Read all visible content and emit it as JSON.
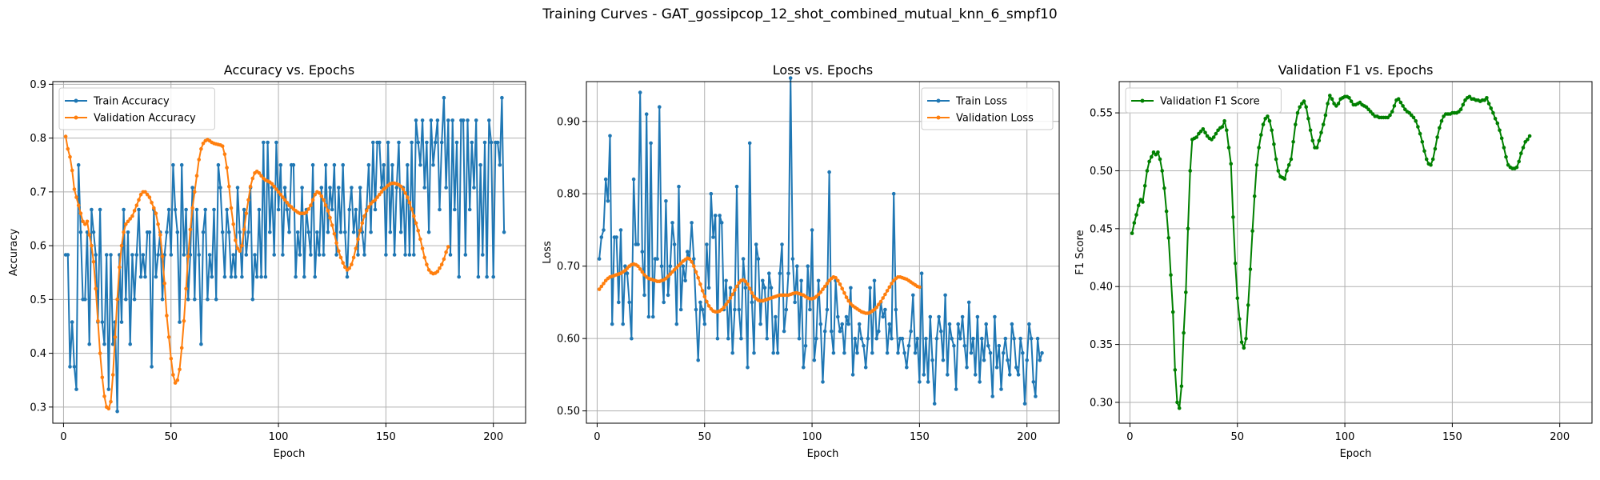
{
  "suptitle": "Training Curves - GAT_gossipcop_12_shot_combined_mutual_knn_6_smpf10",
  "colors": {
    "blue": "#1f77b4",
    "orange": "#ff7f0e",
    "green": "#008000",
    "grid": "#b0b0b0"
  },
  "chart_data": [
    {
      "type": "line",
      "title": "Accuracy vs. Epochs",
      "xlabel": "Epoch",
      "ylabel": "Accuracy",
      "xlim": [
        -5,
        215
      ],
      "ylim": [
        0.27,
        0.905
      ],
      "xticks": [
        0,
        50,
        100,
        150,
        200
      ],
      "yticks": [
        0.3,
        0.4,
        0.5,
        0.6,
        0.7,
        0.8,
        0.9
      ],
      "grid": true,
      "legend_position": "upper left",
      "series": [
        {
          "name": "Train Accuracy",
          "color": "#1f77b4",
          "x_start": 1,
          "values": [
            0.583,
            0.583,
            0.375,
            0.458,
            0.375,
            0.333,
            0.75,
            0.625,
            0.5,
            0.5,
            0.625,
            0.417,
            0.667,
            0.625,
            0.583,
            0.458,
            0.667,
            0.458,
            0.417,
            0.583,
            0.333,
            0.583,
            0.417,
            0.458,
            0.292,
            0.583,
            0.458,
            0.667,
            0.5,
            0.625,
            0.417,
            0.583,
            0.5,
            0.583,
            0.667,
            0.542,
            0.583,
            0.542,
            0.625,
            0.625,
            0.375,
            0.667,
            0.542,
            0.583,
            0.625,
            0.5,
            0.583,
            0.625,
            0.667,
            0.583,
            0.75,
            0.667,
            0.625,
            0.458,
            0.75,
            0.583,
            0.667,
            0.5,
            0.583,
            0.708,
            0.5,
            0.667,
            0.583,
            0.417,
            0.625,
            0.667,
            0.5,
            0.583,
            0.542,
            0.667,
            0.5,
            0.75,
            0.708,
            0.625,
            0.542,
            0.667,
            0.625,
            0.542,
            0.583,
            0.542,
            0.708,
            0.625,
            0.542,
            0.667,
            0.583,
            0.625,
            0.708,
            0.5,
            0.583,
            0.542,
            0.667,
            0.542,
            0.792,
            0.542,
            0.792,
            0.625,
            0.708,
            0.583,
            0.792,
            0.667,
            0.75,
            0.583,
            0.708,
            0.667,
            0.625,
            0.75,
            0.75,
            0.542,
            0.625,
            0.583,
            0.708,
            0.542,
            0.667,
            0.625,
            0.583,
            0.75,
            0.542,
            0.625,
            0.583,
            0.708,
            0.583,
            0.75,
            0.625,
            0.708,
            0.667,
            0.75,
            0.583,
            0.708,
            0.625,
            0.75,
            0.625,
            0.542,
            0.667,
            0.708,
            0.625,
            0.667,
            0.583,
            0.708,
            0.625,
            0.583,
            0.667,
            0.75,
            0.625,
            0.792,
            0.667,
            0.792,
            0.792,
            0.708,
            0.75,
            0.583,
            0.792,
            0.625,
            0.75,
            0.583,
            0.708,
            0.792,
            0.625,
            0.708,
            0.583,
            0.75,
            0.583,
            0.792,
            0.583,
            0.833,
            0.792,
            0.75,
            0.833,
            0.708,
            0.792,
            0.625,
            0.833,
            0.75,
            0.792,
            0.833,
            0.667,
            0.792,
            0.875,
            0.708,
            0.833,
            0.583,
            0.833,
            0.667,
            0.792,
            0.542,
            0.833,
            0.833,
            0.583,
            0.833,
            0.667,
            0.792,
            0.708,
            0.833,
            0.542,
            0.75,
            0.583,
            0.792,
            0.542,
            0.833,
            0.792,
            0.542,
            0.792,
            0.792,
            0.75,
            0.875,
            0.625
          ]
        },
        {
          "name": "Validation Accuracy",
          "color": "#ff7f0e",
          "x_start": 1,
          "values": [
            0.803,
            0.78,
            0.765,
            0.74,
            0.705,
            0.69,
            0.675,
            0.66,
            0.645,
            0.64,
            0.645,
            0.62,
            0.6,
            0.57,
            0.52,
            0.46,
            0.4,
            0.355,
            0.32,
            0.3,
            0.297,
            0.31,
            0.36,
            0.43,
            0.5,
            0.56,
            0.6,
            0.625,
            0.64,
            0.645,
            0.65,
            0.655,
            0.665,
            0.675,
            0.685,
            0.695,
            0.7,
            0.7,
            0.695,
            0.69,
            0.68,
            0.67,
            0.66,
            0.64,
            0.62,
            0.58,
            0.53,
            0.47,
            0.43,
            0.39,
            0.36,
            0.345,
            0.35,
            0.37,
            0.41,
            0.46,
            0.52,
            0.58,
            0.63,
            0.67,
            0.7,
            0.73,
            0.76,
            0.78,
            0.79,
            0.795,
            0.797,
            0.795,
            0.792,
            0.79,
            0.789,
            0.788,
            0.787,
            0.785,
            0.77,
            0.745,
            0.71,
            0.67,
            0.64,
            0.61,
            0.595,
            0.59,
            0.6,
            0.63,
            0.66,
            0.685,
            0.71,
            0.725,
            0.735,
            0.738,
            0.735,
            0.73,
            0.725,
            0.722,
            0.72,
            0.718,
            0.715,
            0.71,
            0.705,
            0.7,
            0.695,
            0.69,
            0.685,
            0.68,
            0.675,
            0.672,
            0.668,
            0.665,
            0.662,
            0.66,
            0.66,
            0.66,
            0.662,
            0.668,
            0.675,
            0.685,
            0.695,
            0.7,
            0.698,
            0.692,
            0.685,
            0.675,
            0.665,
            0.652,
            0.638,
            0.622,
            0.605,
            0.59,
            0.578,
            0.568,
            0.56,
            0.555,
            0.558,
            0.565,
            0.578,
            0.595,
            0.612,
            0.628,
            0.642,
            0.655,
            0.665,
            0.672,
            0.678,
            0.682,
            0.685,
            0.69,
            0.695,
            0.7,
            0.705,
            0.708,
            0.712,
            0.715,
            0.716,
            0.716,
            0.715,
            0.713,
            0.71,
            0.705,
            0.698,
            0.69,
            0.68,
            0.668,
            0.655,
            0.642,
            0.628,
            0.612,
            0.595,
            0.578,
            0.565,
            0.555,
            0.55,
            0.548,
            0.549,
            0.552,
            0.558,
            0.565,
            0.575,
            0.588,
            0.598
          ]
        },
        {
          "name": "",
          "color": "#ff7f0e",
          "x_start": 1,
          "values": []
        }
      ]
    },
    {
      "type": "line",
      "title": "Loss vs. Epochs",
      "xlabel": "Epoch",
      "ylabel": "Loss",
      "xlim": [
        -5,
        215
      ],
      "ylim": [
        0.483,
        0.955
      ],
      "xticks": [
        0,
        50,
        100,
        150,
        200
      ],
      "yticks": [
        0.5,
        0.6,
        0.7,
        0.8,
        0.9
      ],
      "grid": true,
      "legend_position": "upper right",
      "series": [
        {
          "name": "Train Loss",
          "color": "#1f77b4",
          "x_start": 1,
          "values": [
            0.71,
            0.74,
            0.75,
            0.82,
            0.79,
            0.88,
            0.62,
            0.74,
            0.74,
            0.65,
            0.75,
            0.62,
            0.7,
            0.69,
            0.65,
            0.6,
            0.82,
            0.73,
            0.73,
            0.94,
            0.72,
            0.66,
            0.91,
            0.63,
            0.87,
            0.63,
            0.71,
            0.71,
            0.92,
            0.7,
            0.65,
            0.79,
            0.66,
            0.7,
            0.76,
            0.73,
            0.62,
            0.81,
            0.64,
            0.7,
            0.68,
            0.72,
            0.71,
            0.76,
            0.71,
            0.64,
            0.57,
            0.65,
            0.64,
            0.62,
            0.73,
            0.67,
            0.8,
            0.74,
            0.77,
            0.6,
            0.77,
            0.76,
            0.64,
            0.68,
            0.6,
            0.67,
            0.58,
            0.64,
            0.81,
            0.64,
            0.6,
            0.71,
            0.67,
            0.56,
            0.87,
            0.65,
            0.58,
            0.73,
            0.71,
            0.62,
            0.68,
            0.67,
            0.6,
            0.69,
            0.67,
            0.58,
            0.63,
            0.58,
            0.69,
            0.73,
            0.61,
            0.64,
            0.69,
            0.96,
            0.71,
            0.65,
            0.7,
            0.6,
            0.68,
            0.56,
            0.59,
            0.7,
            0.64,
            0.75,
            0.57,
            0.6,
            0.68,
            0.62,
            0.54,
            0.61,
            0.64,
            0.83,
            0.61,
            0.58,
            0.68,
            0.63,
            0.61,
            0.62,
            0.58,
            0.63,
            0.62,
            0.67,
            0.55,
            0.6,
            0.58,
            0.62,
            0.6,
            0.59,
            0.56,
            0.6,
            0.67,
            0.58,
            0.68,
            0.6,
            0.61,
            0.65,
            0.63,
            0.64,
            0.58,
            0.62,
            0.6,
            0.8,
            0.64,
            0.58,
            0.6,
            0.6,
            0.58,
            0.56,
            0.59,
            0.61,
            0.66,
            0.58,
            0.6,
            0.54,
            0.69,
            0.55,
            0.6,
            0.54,
            0.63,
            0.57,
            0.51,
            0.6,
            0.63,
            0.61,
            0.57,
            0.66,
            0.55,
            0.62,
            0.6,
            0.59,
            0.53,
            0.62,
            0.6,
            0.63,
            0.59,
            0.56,
            0.65,
            0.58,
            0.6,
            0.55,
            0.63,
            0.54,
            0.6,
            0.57,
            0.62,
            0.59,
            0.58,
            0.52,
            0.63,
            0.56,
            0.59,
            0.53,
            0.58,
            0.6,
            0.57,
            0.55,
            0.62,
            0.6,
            0.56,
            0.55,
            0.6,
            0.58,
            0.51,
            0.57,
            0.62,
            0.6,
            0.54,
            0.52,
            0.6,
            0.57,
            0.58
          ]
        },
        {
          "name": "Validation Loss",
          "color": "#ff7f0e",
          "x_start": 1,
          "values": [
            0.668,
            0.672,
            0.676,
            0.68,
            0.683,
            0.685,
            0.686,
            0.687,
            0.688,
            0.689,
            0.69,
            0.692,
            0.694,
            0.697,
            0.7,
            0.702,
            0.703,
            0.702,
            0.7,
            0.696,
            0.692,
            0.688,
            0.685,
            0.683,
            0.682,
            0.681,
            0.68,
            0.679,
            0.679,
            0.68,
            0.681,
            0.683,
            0.686,
            0.689,
            0.692,
            0.695,
            0.698,
            0.701,
            0.704,
            0.707,
            0.709,
            0.711,
            0.71,
            0.706,
            0.7,
            0.692,
            0.684,
            0.675,
            0.666,
            0.658,
            0.651,
            0.645,
            0.641,
            0.638,
            0.637,
            0.637,
            0.638,
            0.64,
            0.643,
            0.647,
            0.651,
            0.656,
            0.661,
            0.667,
            0.672,
            0.677,
            0.68,
            0.681,
            0.679,
            0.675,
            0.669,
            0.663,
            0.658,
            0.655,
            0.653,
            0.652,
            0.652,
            0.653,
            0.654,
            0.655,
            0.656,
            0.657,
            0.658,
            0.659,
            0.66,
            0.66,
            0.66,
            0.66,
            0.66,
            0.661,
            0.662,
            0.663,
            0.663,
            0.662,
            0.661,
            0.66,
            0.658,
            0.656,
            0.655,
            0.655,
            0.656,
            0.658,
            0.661,
            0.664,
            0.668,
            0.672,
            0.676,
            0.68,
            0.683,
            0.685,
            0.684,
            0.68,
            0.675,
            0.669,
            0.663,
            0.657,
            0.652,
            0.648,
            0.645,
            0.643,
            0.641,
            0.639,
            0.637,
            0.636,
            0.635,
            0.635,
            0.636,
            0.638,
            0.64,
            0.643,
            0.647,
            0.651,
            0.656,
            0.661,
            0.666,
            0.671,
            0.676,
            0.68,
            0.683,
            0.685,
            0.685,
            0.684,
            0.683,
            0.682,
            0.68,
            0.678,
            0.676,
            0.674,
            0.672,
            0.671
          ]
        }
      ]
    },
    {
      "type": "line",
      "title": "Validation F1 vs. Epochs",
      "xlabel": "Epoch",
      "ylabel": "F1 Score",
      "xlim": [
        -5,
        215
      ],
      "ylim": [
        0.282,
        0.577
      ],
      "xticks": [
        0,
        50,
        100,
        150,
        200
      ],
      "yticks": [
        0.3,
        0.35,
        0.4,
        0.45,
        0.5,
        0.55
      ],
      "grid": true,
      "legend_position": "upper left",
      "series": [
        {
          "name": "Validation F1 Score",
          "color": "#008000",
          "x_start": 1,
          "values": [
            0.446,
            0.455,
            0.462,
            0.47,
            0.475,
            0.473,
            0.487,
            0.5,
            0.508,
            0.512,
            0.516,
            0.514,
            0.516,
            0.51,
            0.5,
            0.485,
            0.465,
            0.442,
            0.41,
            0.378,
            0.328,
            0.3,
            0.295,
            0.314,
            0.36,
            0.395,
            0.45,
            0.5,
            0.527,
            0.528,
            0.529,
            0.532,
            0.534,
            0.536,
            0.533,
            0.53,
            0.528,
            0.527,
            0.529,
            0.532,
            0.535,
            0.537,
            0.538,
            0.543,
            0.535,
            0.52,
            0.506,
            0.46,
            0.42,
            0.39,
            0.372,
            0.352,
            0.347,
            0.355,
            0.384,
            0.415,
            0.448,
            0.478,
            0.505,
            0.52,
            0.531,
            0.54,
            0.545,
            0.547,
            0.543,
            0.535,
            0.523,
            0.51,
            0.5,
            0.495,
            0.494,
            0.493,
            0.5,
            0.505,
            0.51,
            0.525,
            0.54,
            0.55,
            0.555,
            0.558,
            0.56,
            0.555,
            0.545,
            0.535,
            0.526,
            0.52,
            0.52,
            0.526,
            0.533,
            0.54,
            0.548,
            0.558,
            0.565,
            0.562,
            0.558,
            0.556,
            0.558,
            0.562,
            0.563,
            0.564,
            0.564,
            0.563,
            0.56,
            0.557,
            0.557,
            0.558,
            0.559,
            0.557,
            0.556,
            0.555,
            0.553,
            0.551,
            0.549,
            0.547,
            0.547,
            0.546,
            0.546,
            0.546,
            0.546,
            0.546,
            0.548,
            0.551,
            0.556,
            0.561,
            0.562,
            0.559,
            0.556,
            0.553,
            0.551,
            0.55,
            0.548,
            0.546,
            0.543,
            0.538,
            0.532,
            0.525,
            0.517,
            0.51,
            0.506,
            0.505,
            0.51,
            0.519,
            0.529,
            0.537,
            0.543,
            0.547,
            0.549,
            0.549,
            0.549,
            0.55,
            0.55,
            0.55,
            0.551,
            0.553,
            0.557,
            0.561,
            0.563,
            0.564,
            0.562,
            0.562,
            0.561,
            0.561,
            0.56,
            0.561,
            0.561,
            0.563,
            0.558,
            0.554,
            0.55,
            0.545,
            0.541,
            0.535,
            0.528,
            0.52,
            0.512,
            0.505,
            0.503,
            0.502,
            0.502,
            0.503,
            0.508,
            0.515,
            0.52,
            0.525,
            0.527,
            0.53
          ]
        }
      ]
    }
  ]
}
